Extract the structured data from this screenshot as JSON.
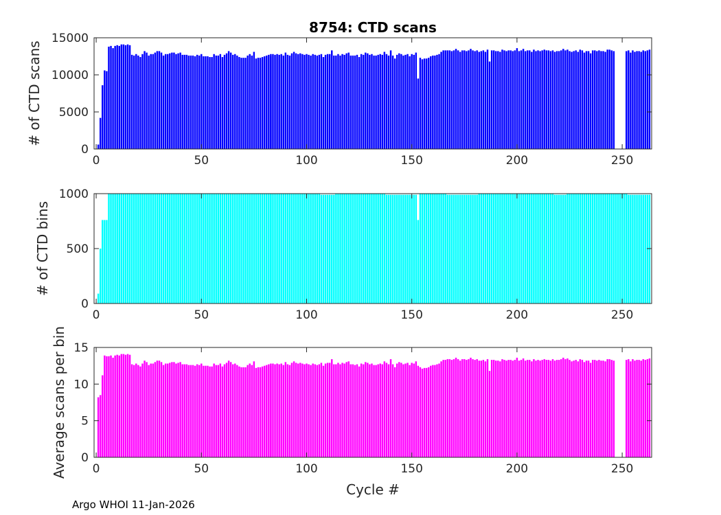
{
  "footer": "Argo WHOI 11-Jan-2026",
  "chart_data": [
    {
      "type": "bar",
      "title": "8754: CTD scans",
      "ylabel": "# of CTD scans",
      "xlabel": "",
      "color": "#0000ff",
      "xlim": [
        -1,
        264
      ],
      "ylim": [
        0,
        15000
      ],
      "xticks": [
        0,
        50,
        100,
        150,
        200,
        250
      ],
      "yticks": [
        0,
        5000,
        10000,
        15000
      ],
      "series_segments": [
        {
          "start": 1,
          "values": [
            600,
            4200,
            8600,
            10600,
            10500,
            13800,
            13900,
            13600,
            13900,
            14000,
            13900,
            14100,
            14100,
            14000,
            14100,
            14000,
            12700,
            12600,
            12800,
            12600,
            12400,
            12800,
            13200,
            13000,
            12600,
            12800,
            12800,
            13000,
            13200,
            13200,
            13000,
            12600,
            12800,
            12800,
            12900,
            13000,
            13000,
            12800,
            12900,
            13000,
            12700,
            12700,
            12700,
            12600,
            12600,
            12600,
            12500,
            12700,
            12600,
            12800,
            12500,
            12500,
            12500,
            12400,
            12400,
            12800,
            12600,
            12600,
            12800,
            12400,
            12700,
            12900,
            13200,
            13000,
            12700,
            12800,
            12600,
            12400,
            12300,
            12300,
            12300,
            12600,
            12800,
            12600,
            13100,
            12200,
            12300,
            12300,
            12400,
            12500,
            12600,
            12700,
            12800
          ]
        },
        {
          "start": 83,
          "values": [
            12500,
            12800,
            12700,
            12800,
            12700,
            12800,
            12600,
            13000,
            12700,
            12600,
            12900,
            13100,
            12900,
            12800,
            12900,
            12800,
            12700,
            12800,
            12700,
            12600,
            12800,
            12700,
            12600,
            12700,
            12800,
            12400,
            12700,
            12800,
            12800,
            13300,
            12600,
            12600,
            12800,
            12600,
            12800,
            12700,
            12900,
            13000,
            12600,
            12600,
            12600,
            12700,
            12400,
            12800,
            12700,
            13000,
            12900,
            12700,
            12800,
            12600,
            12600,
            12700,
            12800,
            12700,
            13100,
            12800,
            12600,
            13300,
            12600,
            12200,
            12700,
            12900,
            12800,
            12600,
            12700,
            12800,
            12500,
            12800,
            12700,
            13000,
            9500,
            12300,
            12100,
            12200,
            12200,
            12300,
            12500,
            12600,
            12600,
            12700,
            12800,
            13100,
            13300,
            13300,
            13300,
            13300,
            13200,
            13300,
            13500,
            13300,
            13100,
            13300,
            13300,
            13200,
            13300,
            13500,
            13300,
            13200,
            13300,
            13100,
            13200,
            13300,
            13100,
            13400,
            11800,
            13300,
            13300,
            13200,
            13200,
            13100,
            13400,
            13300,
            13200,
            13300,
            13300,
            13200,
            13300,
            13600,
            13200,
            13300,
            13500,
            13200,
            13300,
            13300,
            13100,
            13400,
            13200,
            13300,
            13200,
            13300,
            13400,
            13300,
            13300,
            13200,
            13300,
            13100,
            13200,
            13200,
            13300,
            13500,
            13300,
            13400,
            13200,
            13100,
            13200,
            13300,
            13100,
            13400,
            13300,
            13000,
            13200,
            13200,
            12900,
            13300,
            13300,
            13200,
            13300,
            13200,
            13200,
            13100,
            13400,
            13400,
            13300,
            13200
          ]
        },
        {
          "start": 252,
          "values": [
            13200,
            13300,
            13000,
            13300,
            13100,
            13200,
            13200,
            13100,
            13300,
            13200,
            13300,
            13400
          ]
        }
      ]
    },
    {
      "type": "bar",
      "title": "",
      "ylabel": "# of CTD bins",
      "xlabel": "",
      "color": "#00ffff",
      "xlim": [
        -1,
        264
      ],
      "ylim": [
        0,
        1000
      ],
      "xticks": [
        0,
        50,
        100,
        150,
        200,
        250
      ],
      "yticks": [
        0,
        500,
        1000
      ],
      "series_segments": [
        {
          "start": 1,
          "values": [
            90,
            500,
            760,
            760,
            760,
            1000,
            1000,
            1000,
            1000,
            1000,
            1000,
            1000,
            1000,
            1000,
            1000,
            1000,
            1000,
            1000,
            1000,
            1000,
            1000,
            1000,
            1000,
            1000,
            1000,
            1000,
            1000,
            1000,
            1000,
            1000,
            1000,
            1000,
            1000,
            1000,
            1000,
            1000,
            1000,
            1000,
            1000,
            1000,
            1000,
            1000,
            1000,
            1000,
            1000,
            1000,
            1000,
            1000,
            1000,
            1000,
            1000,
            1000,
            1000,
            1000,
            1000,
            1000,
            1000,
            1000,
            1000,
            1000,
            1000,
            1000,
            1000,
            1000,
            1000,
            1000,
            1000,
            1000,
            1000,
            1000,
            1000,
            1000,
            1000,
            1000,
            1000,
            1000,
            1000,
            1000,
            1000,
            1000,
            1000,
            1000,
            1000
          ]
        },
        {
          "start": 83,
          "values": [
            1000,
            1000,
            1000,
            1000,
            1000,
            1000,
            1000,
            1000,
            1000,
            1000,
            1000,
            1000,
            1000,
            1000,
            1000,
            1000,
            1000,
            1000,
            1000,
            1000,
            1000,
            1000,
            1000,
            1000,
            990,
            990,
            990,
            990,
            990,
            990,
            990,
            1000,
            1000,
            1000,
            1000,
            1000,
            1000,
            1000,
            1000,
            1000,
            1000,
            1000,
            1000,
            1000,
            1000,
            1000,
            1000,
            1000,
            1000,
            1000,
            1000,
            1000,
            1000,
            1000,
            1000,
            990,
            990,
            990,
            990,
            990,
            990,
            990,
            990,
            990,
            990,
            990,
            990,
            990,
            990,
            990,
            760,
            1000,
            1000,
            1000,
            1000,
            1000,
            1000,
            1000,
            1000,
            1000,
            1000,
            1000,
            1000,
            1000,
            990,
            990,
            990,
            990,
            990,
            990,
            990,
            990,
            990,
            990,
            990,
            990,
            990,
            990,
            990,
            1000,
            1000,
            1000,
            1000,
            1000,
            1000,
            1000,
            1000,
            1000,
            1000,
            1000,
            1000,
            1000,
            1000,
            1000,
            1000,
            1000,
            1000,
            1000,
            1000,
            1000,
            1000,
            1000,
            1000,
            1000,
            1000,
            1000,
            1000,
            1000,
            1000,
            1000,
            1000,
            1000,
            1000,
            1000,
            1000,
            990,
            990,
            990,
            990,
            990,
            990,
            1000,
            1000,
            1000,
            1000,
            1000,
            1000,
            1000,
            1000,
            1000,
            1000,
            1000,
            1000,
            1000,
            1000,
            1000,
            1000,
            1000,
            1000,
            1000,
            1000,
            1000,
            1000,
            1000,
            1000,
            1000,
            1000,
            1000,
            1000,
            1000
          ]
        },
        {
          "start": 252,
          "values": [
            990,
            990,
            990,
            990,
            990,
            990,
            990,
            990,
            990,
            990,
            990,
            990
          ]
        }
      ]
    },
    {
      "type": "bar",
      "title": "",
      "ylabel": "Average scans per bin",
      "xlabel": "Cycle #",
      "color": "#ff00ff",
      "xlim": [
        -1,
        264
      ],
      "ylim": [
        0,
        15
      ],
      "xticks": [
        0,
        50,
        100,
        150,
        200,
        250
      ],
      "yticks": [
        0,
        5,
        10,
        15
      ],
      "series_segments": [
        {
          "start": 1,
          "values": [
            8.2,
            8.5,
            11.2,
            13.9,
            13.8,
            13.8,
            13.9,
            13.6,
            13.9,
            14.0,
            13.9,
            14.1,
            14.1,
            14.0,
            14.1,
            14.0,
            12.7,
            12.6,
            12.8,
            12.6,
            12.4,
            12.8,
            13.2,
            13.0,
            12.6,
            12.8,
            12.8,
            13.0,
            13.2,
            13.2,
            13.0,
            12.6,
            12.8,
            12.8,
            12.9,
            13.0,
            13.0,
            12.8,
            12.9,
            13.0,
            12.7,
            12.7,
            12.7,
            12.6,
            12.6,
            12.6,
            12.5,
            12.7,
            12.6,
            12.8,
            12.5,
            12.5,
            12.5,
            12.4,
            12.4,
            12.8,
            12.6,
            12.6,
            12.8,
            12.4,
            12.7,
            12.9,
            13.2,
            13.0,
            12.7,
            12.8,
            12.6,
            12.4,
            12.3,
            12.3,
            12.3,
            12.6,
            12.8,
            12.6,
            13.1,
            12.2,
            12.3,
            12.3,
            12.4,
            12.5,
            12.6,
            12.7,
            12.8
          ]
        },
        {
          "start": 83,
          "values": [
            12.5,
            12.8,
            12.7,
            12.8,
            12.7,
            12.8,
            12.6,
            13.0,
            12.7,
            12.6,
            12.9,
            13.1,
            12.9,
            12.8,
            12.9,
            12.8,
            12.7,
            12.8,
            12.7,
            12.6,
            12.8,
            12.7,
            12.6,
            12.7,
            12.9,
            12.5,
            12.8,
            12.9,
            12.9,
            13.4,
            12.7,
            12.7,
            12.9,
            12.7,
            12.9,
            12.8,
            13.0,
            13.1,
            12.7,
            12.7,
            12.6,
            12.7,
            12.4,
            12.8,
            12.7,
            13.0,
            12.9,
            12.7,
            12.8,
            12.6,
            12.6,
            12.7,
            12.8,
            12.7,
            13.1,
            12.9,
            12.7,
            13.4,
            12.7,
            12.3,
            12.8,
            13.0,
            12.9,
            12.7,
            12.8,
            12.9,
            12.6,
            12.9,
            12.8,
            13.1,
            12.5,
            12.3,
            12.1,
            12.2,
            12.2,
            12.3,
            12.5,
            12.6,
            12.6,
            12.7,
            12.8,
            13.1,
            13.3,
            13.3,
            13.4,
            13.4,
            13.3,
            13.4,
            13.6,
            13.4,
            13.2,
            13.4,
            13.4,
            13.3,
            13.4,
            13.6,
            13.4,
            13.3,
            13.4,
            13.2,
            13.2,
            13.3,
            13.1,
            13.4,
            11.8,
            13.3,
            13.3,
            13.2,
            13.2,
            13.1,
            13.4,
            13.3,
            13.2,
            13.3,
            13.3,
            13.2,
            13.3,
            13.6,
            13.2,
            13.3,
            13.5,
            13.2,
            13.3,
            13.3,
            13.1,
            13.4,
            13.2,
            13.3,
            13.2,
            13.3,
            13.4,
            13.3,
            13.3,
            13.2,
            13.4,
            13.2,
            13.3,
            13.3,
            13.4,
            13.6,
            13.4,
            13.5,
            13.3,
            13.1,
            13.2,
            13.3,
            13.1,
            13.4,
            13.3,
            13.0,
            13.2,
            13.2,
            12.9,
            13.3,
            13.3,
            13.2,
            13.3,
            13.2,
            13.2,
            13.1,
            13.4,
            13.4,
            13.3,
            13.2
          ]
        },
        {
          "start": 252,
          "values": [
            13.3,
            13.4,
            13.1,
            13.4,
            13.2,
            13.3,
            13.3,
            13.2,
            13.4,
            13.3,
            13.4,
            13.5
          ]
        }
      ]
    }
  ]
}
